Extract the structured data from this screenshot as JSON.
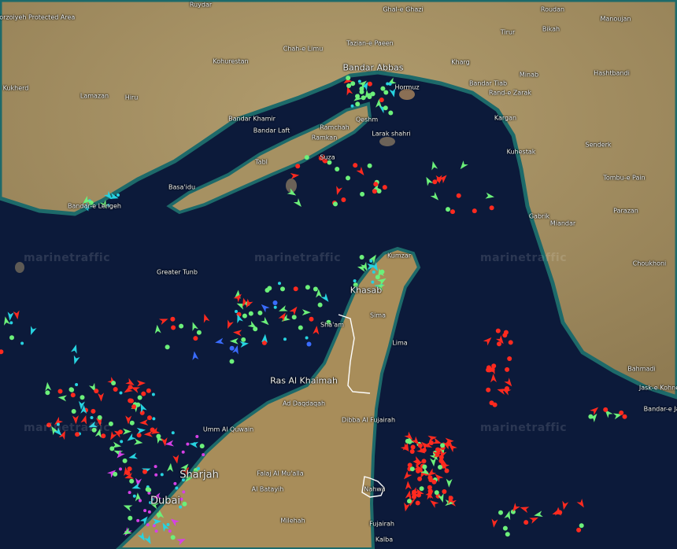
{
  "map": {
    "provider_watermark": "marinetraffic",
    "basemap": "satellite",
    "colors": {
      "sea": "#0c1a3a",
      "land": "#a89467",
      "shallow": "#1d6a6a",
      "tanker": "#ff2a1f",
      "cargo": "#6cf07a",
      "passenger": "#3a6cff",
      "tug_special": "#27d3e0",
      "pleasure": "#d640e6",
      "other": "#ffb02e",
      "border": "#ffffff"
    },
    "place_labels": [
      {
        "name": "Porzoiyeh Protected Area",
        "size": "small"
      },
      {
        "name": "Ruydar",
        "size": "small"
      },
      {
        "name": "Ghal-e Ghazi",
        "size": "small"
      },
      {
        "name": "Roudan",
        "size": "small"
      },
      {
        "name": "Manoujan",
        "size": "small"
      },
      {
        "name": "Bikah",
        "size": "small"
      },
      {
        "name": "Tirur",
        "size": "small"
      },
      {
        "name": "Tazian-e Paeen",
        "size": "small"
      },
      {
        "name": "Chah-e Limu",
        "size": "small"
      },
      {
        "name": "Kohurestan",
        "size": "small"
      },
      {
        "name": "Kukherd",
        "size": "small"
      },
      {
        "name": "Lamazan",
        "size": "small"
      },
      {
        "name": "Hiru",
        "size": "small"
      },
      {
        "name": "Bandar Abbas",
        "size": "big"
      },
      {
        "name": "Kharg",
        "size": "small"
      },
      {
        "name": "Minab",
        "size": "small"
      },
      {
        "name": "Hashtbandi",
        "size": "small"
      },
      {
        "name": "Hormuz",
        "size": "small"
      },
      {
        "name": "Bandar Tiab",
        "size": "small"
      },
      {
        "name": "Rand-e Zarak",
        "size": "small"
      },
      {
        "name": "Bandar Khamir",
        "size": "small"
      },
      {
        "name": "Bandar Laft",
        "size": "small"
      },
      {
        "name": "Ramchah",
        "size": "small"
      },
      {
        "name": "Qeshm",
        "size": "small"
      },
      {
        "name": "Ramkan",
        "size": "small"
      },
      {
        "name": "Kargan",
        "size": "small"
      },
      {
        "name": "Larak shahri",
        "size": "small"
      },
      {
        "name": "Suza",
        "size": "small"
      },
      {
        "name": "Kuhestak",
        "size": "small"
      },
      {
        "name": "Senderk",
        "size": "small"
      },
      {
        "name": "Tabl",
        "size": "small"
      },
      {
        "name": "Basa'idu",
        "size": "small"
      },
      {
        "name": "Tombu-e Pain",
        "size": "small"
      },
      {
        "name": "Bandar-e Lengeh",
        "size": "small"
      },
      {
        "name": "Parazan",
        "size": "small"
      },
      {
        "name": "Gabrik",
        "size": "small"
      },
      {
        "name": "Miandar",
        "size": "small"
      },
      {
        "name": "Choukhoni",
        "size": "small"
      },
      {
        "name": "Greater Tunb",
        "size": "small"
      },
      {
        "name": "Kumzar",
        "size": "small"
      },
      {
        "name": "Khasab",
        "size": "big"
      },
      {
        "name": "Sima",
        "size": "small"
      },
      {
        "name": "Sha'am",
        "size": "small"
      },
      {
        "name": "Lima",
        "size": "small"
      },
      {
        "name": "Ras Al Khaimah",
        "size": "big"
      },
      {
        "name": "Ad Daqdaqah",
        "size": "small"
      },
      {
        "name": "Dibba Al Fujairah",
        "size": "small"
      },
      {
        "name": "Umm Al Quwain",
        "size": "small"
      },
      {
        "name": "Bahmadi",
        "size": "small"
      },
      {
        "name": "Jask-e Kohneh",
        "size": "small"
      },
      {
        "name": "Bandar-e Jask",
        "size": "small"
      },
      {
        "name": "Sharjah",
        "size": "xl"
      },
      {
        "name": "Falaj Al Mu'alla",
        "size": "small"
      },
      {
        "name": "Al Batayih",
        "size": "small"
      },
      {
        "name": "Nahwa",
        "size": "small"
      },
      {
        "name": "Dubai",
        "size": "xl"
      },
      {
        "name": "Milehah",
        "size": "small"
      },
      {
        "name": "Fujairah",
        "size": "small"
      },
      {
        "name": "Kalba",
        "size": "small"
      }
    ]
  }
}
